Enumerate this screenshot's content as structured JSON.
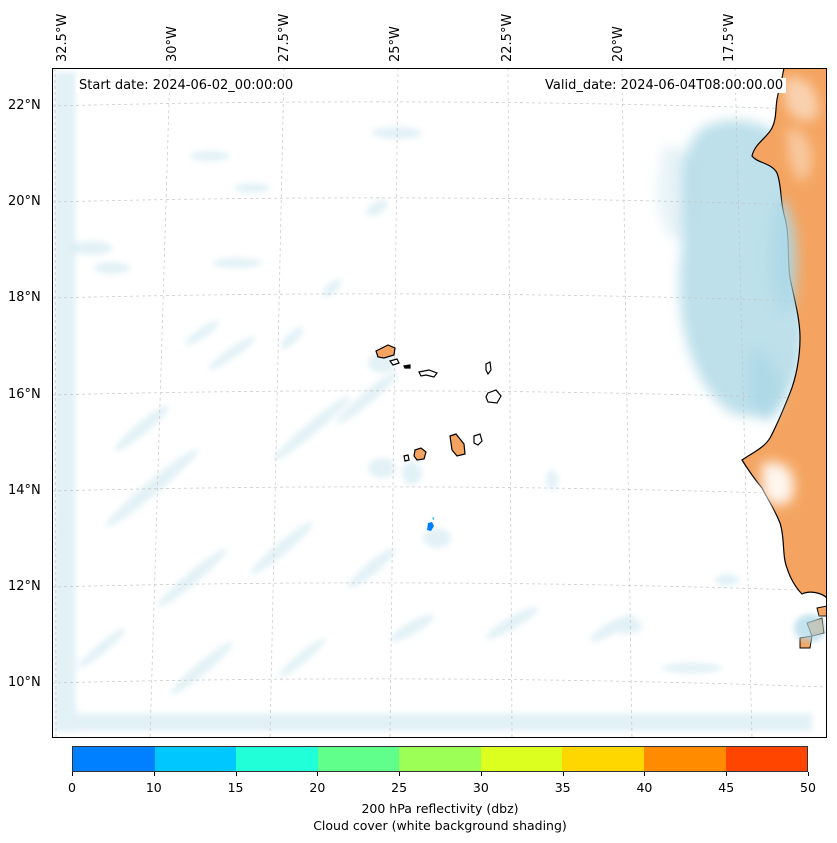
{
  "map": {
    "lon_labels": [
      "32.5°W",
      "30°W",
      "27.5°W",
      "25°W",
      "22.5°W",
      "20°W",
      "17.5°W"
    ],
    "lat_labels": [
      "22°N",
      "20°N",
      "18°N",
      "16°N",
      "14°N",
      "12°N",
      "10°N"
    ],
    "start_date": "Start date: 2024-06-02_00:00:00",
    "valid_date": "Valid_date: 2024-06-04T08:00:00.00",
    "ocean_color": "#ffffff",
    "cloud_color": "#add8e6",
    "land_color": "#f4a460"
  },
  "colorbar": {
    "colors": [
      "#0080ff",
      "#00c8ff",
      "#20ffd8",
      "#60ff8c",
      "#9cff56",
      "#dcff20",
      "#ffd700",
      "#ff8c00",
      "#ff4500"
    ],
    "ticks": [
      "0",
      "10",
      "15",
      "20",
      "25",
      "30",
      "35",
      "40",
      "45",
      "50"
    ],
    "title": "200 hPa reflectivity (dbz)",
    "subtitle": "Cloud cover (white background shading)"
  }
}
